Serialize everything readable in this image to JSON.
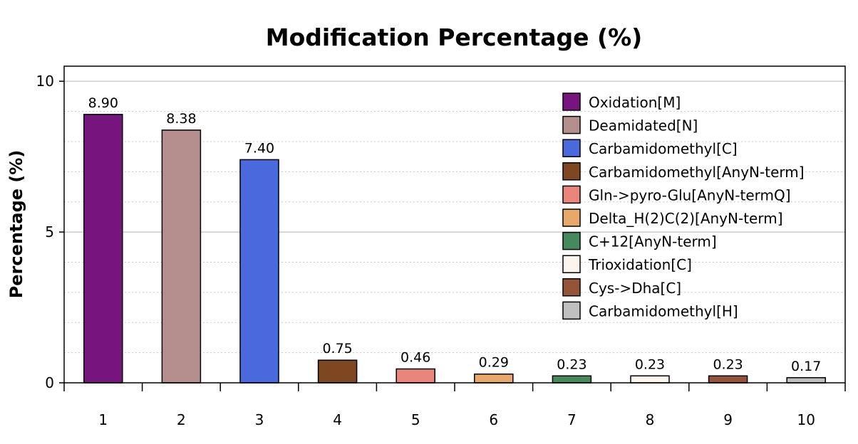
{
  "chart_data": {
    "type": "bar",
    "title": "Modification Percentage (%)",
    "xlabel": "",
    "ylabel": "Percentage (%)",
    "categories": [
      "1",
      "2",
      "3",
      "4",
      "5",
      "6",
      "7",
      "8",
      "9",
      "10"
    ],
    "values": [
      8.9,
      8.38,
      7.4,
      0.75,
      0.46,
      0.29,
      0.23,
      0.23,
      0.23,
      0.17
    ],
    "value_labels": [
      "8.90",
      "8.38",
      "7.40",
      "0.75",
      "0.46",
      "0.29",
      "0.23",
      "0.23",
      "0.23",
      "0.17"
    ],
    "series_names": [
      "Oxidation[M]",
      "Deamidated[N]",
      "Carbamidomethyl[C]",
      "Carbamidomethyl[AnyN-term]",
      "Gln->pyro-Glu[AnyN-termQ]",
      "Delta_H(2)C(2)[AnyN-term]",
      "C+12[AnyN-term]",
      "Trioxidation[C]",
      "Cys->Dha[C]",
      "Carbamidomethyl[H]"
    ],
    "colors": [
      "#76157e",
      "#b48f8d",
      "#4a69dc",
      "#7e4722",
      "#e9857a",
      "#e8a86c",
      "#468a5b",
      "#fcf5ee",
      "#955438",
      "#c0c0c0"
    ],
    "ylim": [
      0,
      10.5
    ],
    "yticks": [
      0,
      5,
      10
    ],
    "grid": "horizontal",
    "legend_position": "top-right"
  }
}
